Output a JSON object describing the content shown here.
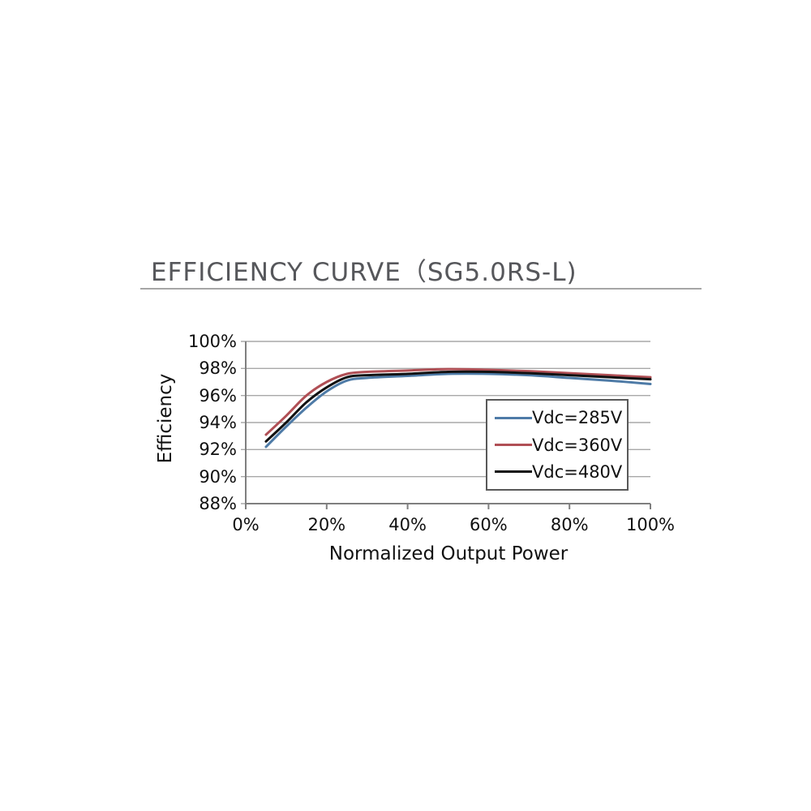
{
  "chart_data": {
    "type": "line",
    "title": "EFFICIENCY CURVE（SG5.0RS-L)",
    "xlabel": "Normalized Output Power",
    "ylabel": "Efficiency",
    "xlim": [
      0,
      100
    ],
    "ylim": [
      88,
      100
    ],
    "x_ticks": [
      0,
      20,
      40,
      60,
      80,
      100
    ],
    "y_ticks": [
      88,
      90,
      92,
      94,
      96,
      98,
      100
    ],
    "tick_suffix": "%",
    "grid": "horizontal",
    "legend_position": "inside-right",
    "x": [
      5,
      10,
      15,
      20,
      25,
      30,
      40,
      50,
      60,
      70,
      80,
      90,
      100
    ],
    "series": [
      {
        "name": "Vdc=285V",
        "color": "#4e7ba7",
        "values": [
          92.2,
          93.7,
          95.1,
          96.3,
          97.1,
          97.3,
          97.45,
          97.6,
          97.6,
          97.5,
          97.3,
          97.1,
          96.85
        ]
      },
      {
        "name": "Vdc=360V",
        "color": "#b04f55",
        "values": [
          93.1,
          94.5,
          96.0,
          97.0,
          97.6,
          97.75,
          97.85,
          97.95,
          97.9,
          97.8,
          97.65,
          97.5,
          97.35
        ]
      },
      {
        "name": "Vdc=480V",
        "color": "#111111",
        "values": [
          92.6,
          94.0,
          95.5,
          96.6,
          97.35,
          97.5,
          97.6,
          97.75,
          97.75,
          97.65,
          97.5,
          97.35,
          97.2
        ]
      }
    ]
  },
  "colors": {
    "grid": "#a8a8a8",
    "axis": "#7f7f7f",
    "title_text": "#56575b",
    "divider": "#a6a6a6",
    "label_text": "#111111",
    "legend_border": "#595959",
    "background": "#ffffff"
  }
}
